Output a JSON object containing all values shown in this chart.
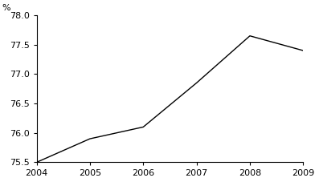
{
  "x": [
    2004,
    2005,
    2006,
    2007,
    2008,
    2009
  ],
  "y": [
    75.5,
    75.9,
    76.1,
    76.85,
    77.65,
    77.4
  ],
  "ylim": [
    75.5,
    78.0
  ],
  "xlim": [
    2004,
    2009
  ],
  "yticks": [
    75.5,
    76.0,
    76.5,
    77.0,
    77.5,
    78.0
  ],
  "xticks": [
    2004,
    2005,
    2006,
    2007,
    2008,
    2009
  ],
  "percent_label": "%",
  "line_color": "#000000",
  "line_width": 1.0,
  "background_color": "#ffffff",
  "tick_label_fontsize": 8,
  "label_fontsize": 8
}
